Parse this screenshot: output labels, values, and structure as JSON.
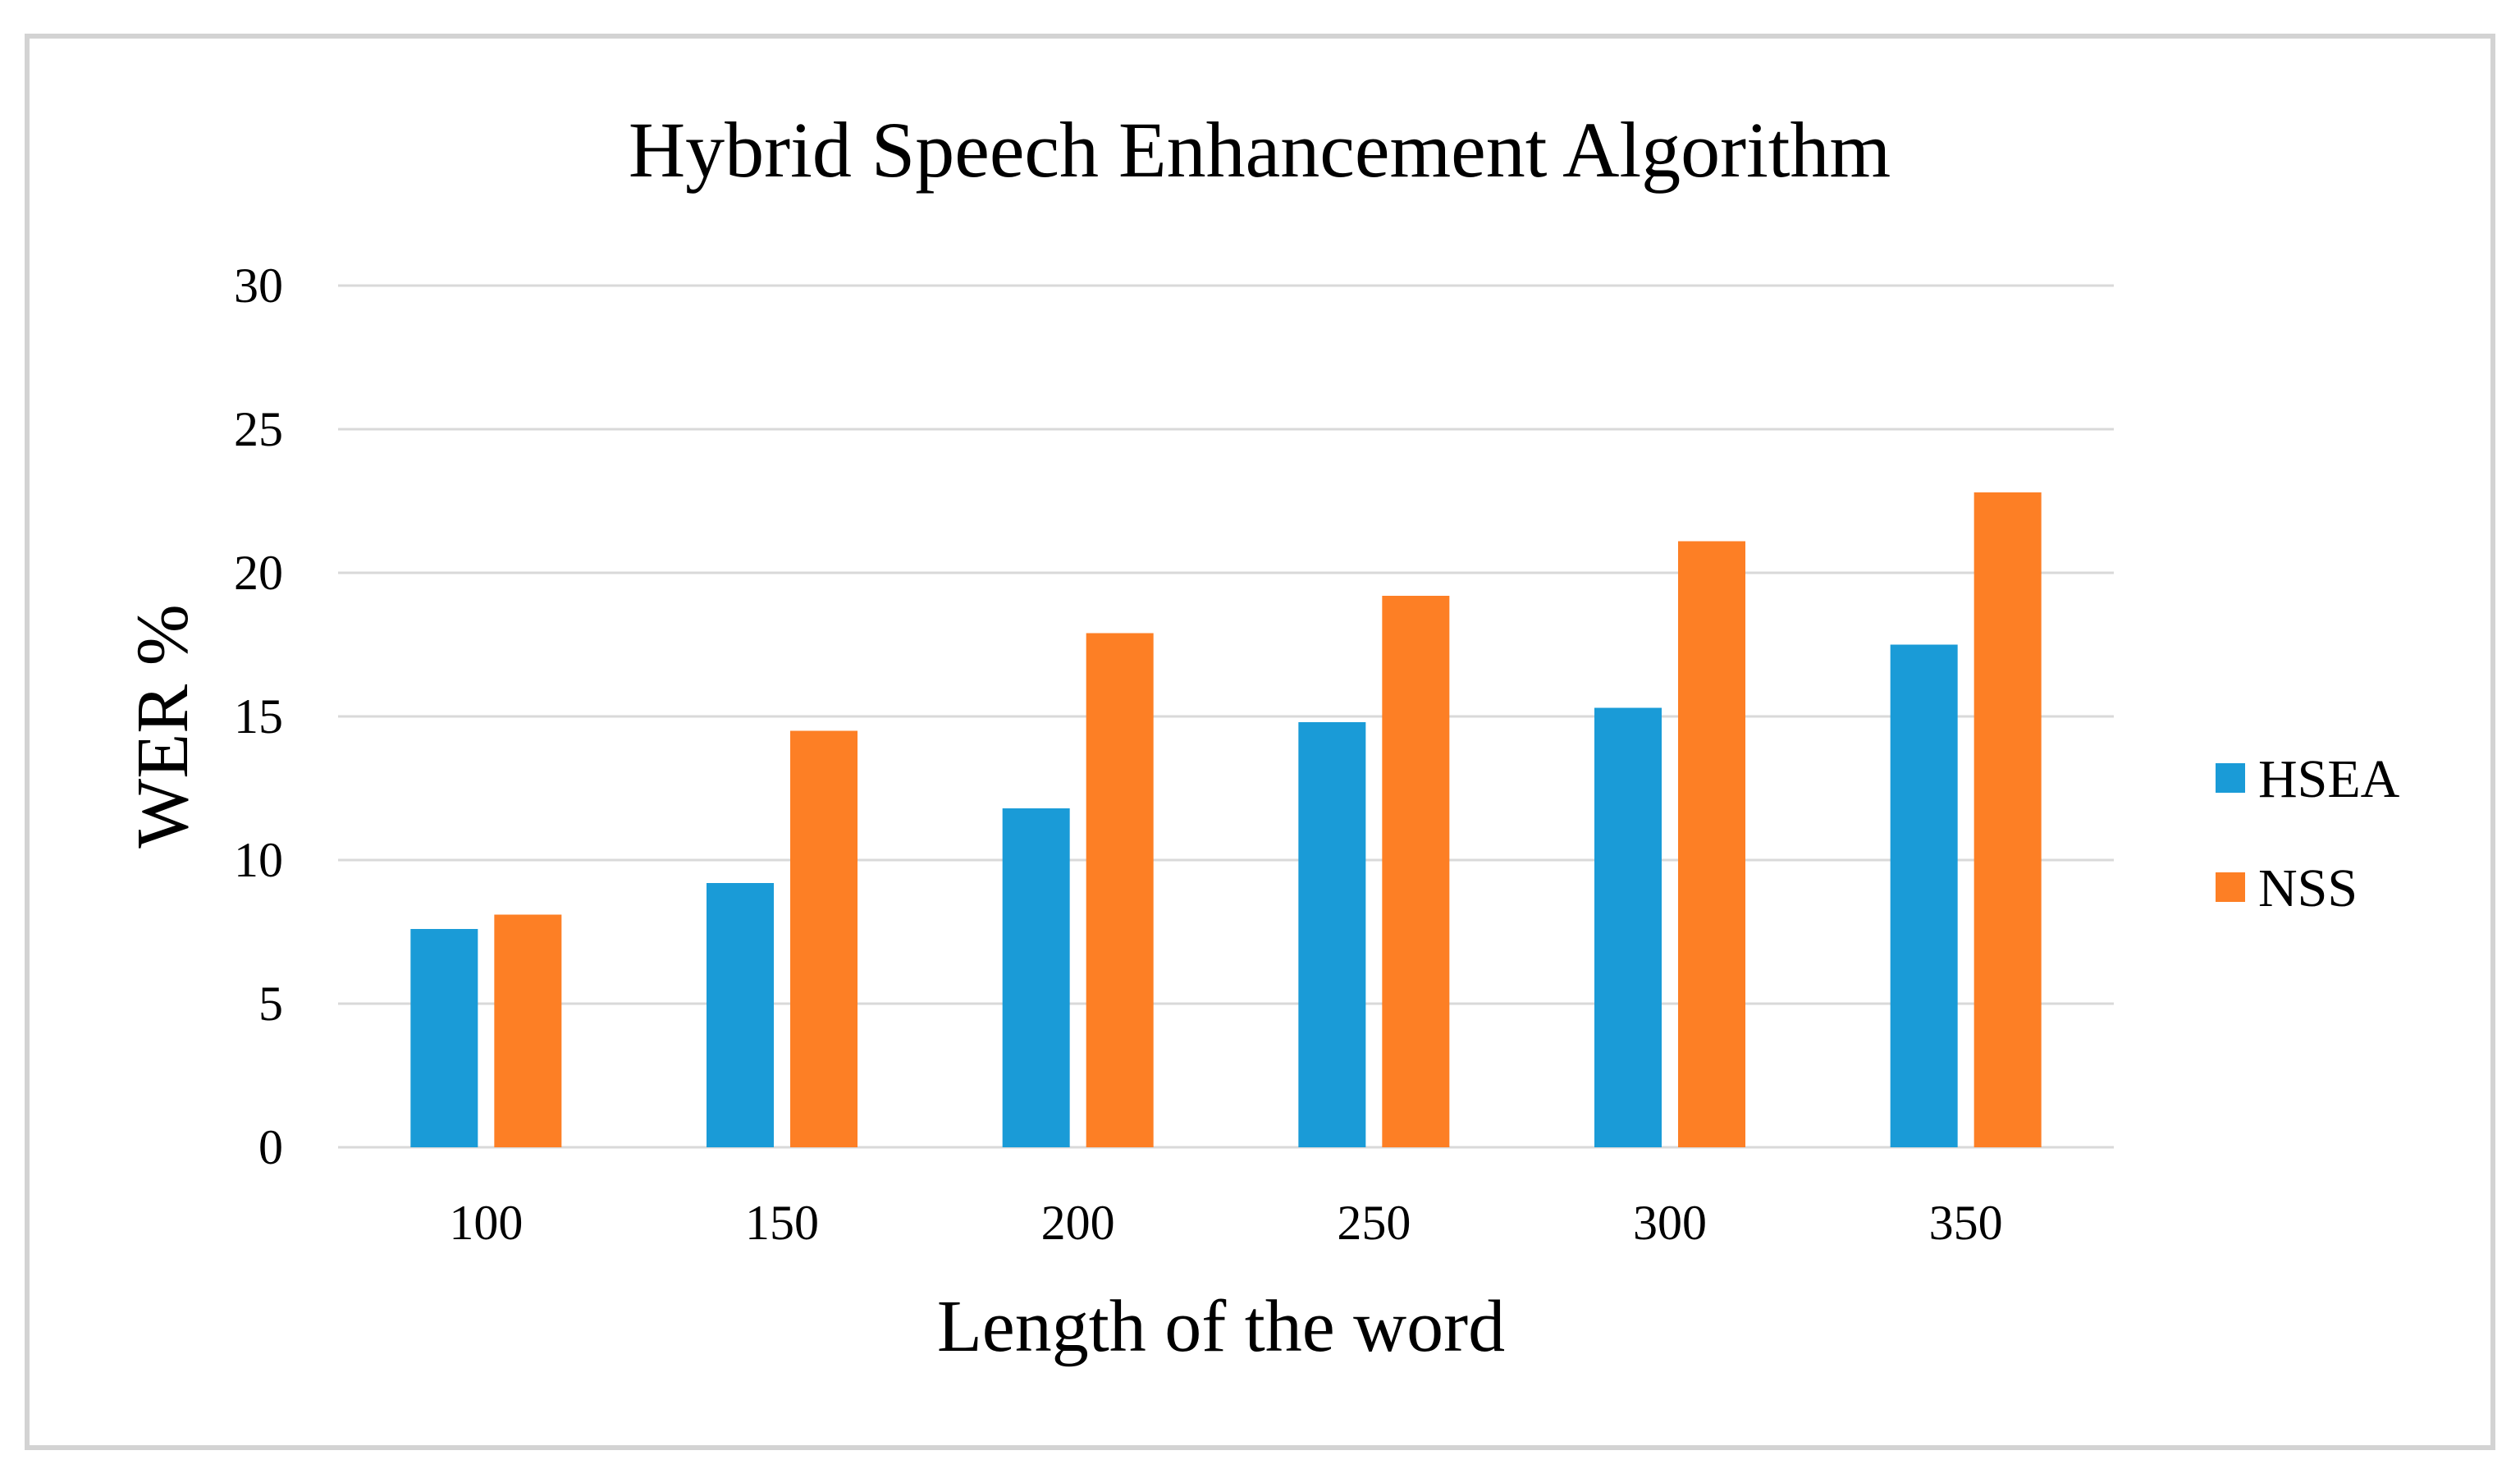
{
  "chart_data": {
    "type": "bar",
    "title": "Hybrid Speech Enhancement Algorithm",
    "xlabel": "Length of the word",
    "ylabel": "WER %",
    "categories": [
      "100",
      "150",
      "200",
      "250",
      "300",
      "350"
    ],
    "series": [
      {
        "name": "HSEA",
        "values": [
          7.6,
          9.2,
          11.8,
          14.8,
          15.3,
          17.5
        ]
      },
      {
        "name": "NSS",
        "values": [
          8.1,
          14.5,
          17.9,
          19.2,
          21.1,
          22.8
        ]
      }
    ],
    "ylim": [
      0,
      30
    ],
    "yticks": [
      "0",
      "5",
      "10",
      "15",
      "20",
      "25",
      "30"
    ],
    "grid": true,
    "legend_position": "right",
    "colors": {
      "HSEA": "#1a9bd7",
      "NSS": "#fd7f25",
      "gridline": "#d9d9d9",
      "frame": "#d3d3d3"
    }
  }
}
